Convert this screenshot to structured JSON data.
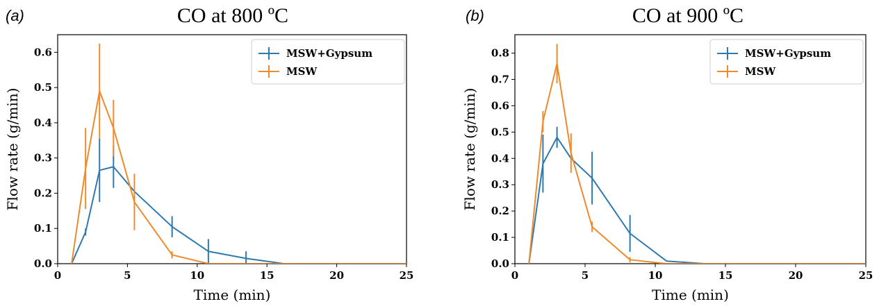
{
  "chart_data": [
    {
      "type": "line",
      "panel_label": "(a)",
      "title": "CO at 800 ºC",
      "xlabel": "Time (min)",
      "ylabel": "Flow rate (g/min)",
      "xlim": [
        0,
        25
      ],
      "ylim": [
        0,
        0.65
      ],
      "xticks": [
        0,
        5,
        10,
        15,
        20,
        25
      ],
      "yticks": [
        0.0,
        0.1,
        0.2,
        0.3,
        0.4,
        0.5,
        0.6
      ],
      "ytick_labels": [
        "0.0",
        "0.1",
        "0.2",
        "0.3",
        "0.4",
        "0.5",
        "0.6"
      ],
      "grid": false,
      "legend_position": "top-right",
      "series": [
        {
          "name": "MSW+Gypsum",
          "color": "#2e7ab0",
          "x": [
            1,
            2,
            3,
            4,
            5.5,
            8.2,
            10.8,
            13.5,
            16.2,
            25
          ],
          "y": [
            0,
            0.09,
            0.265,
            0.275,
            0.205,
            0.105,
            0.035,
            0.015,
            0,
            0
          ],
          "err": [
            0,
            0.01,
            0.09,
            0.06,
            0,
            0.03,
            0.035,
            0.02,
            0,
            0
          ]
        },
        {
          "name": "MSW",
          "color": "#ef8a2a",
          "x": [
            1,
            2,
            3,
            4,
            5.5,
            8.2,
            10.8,
            25
          ],
          "y": [
            0,
            0.27,
            0.49,
            0.385,
            0.175,
            0.025,
            0,
            0
          ],
          "err": [
            0,
            0.115,
            0.135,
            0.08,
            0.08,
            0.01,
            0,
            0
          ]
        }
      ]
    },
    {
      "type": "line",
      "panel_label": "(b)",
      "title": "CO at 900 ºC",
      "xlabel": "Time (min)",
      "ylabel": "Flow rate (g/min)",
      "xlim": [
        0,
        25
      ],
      "ylim": [
        0,
        0.87
      ],
      "xticks": [
        0,
        5,
        10,
        15,
        20,
        25
      ],
      "yticks": [
        0.0,
        0.1,
        0.2,
        0.3,
        0.4,
        0.5,
        0.6,
        0.7,
        0.8
      ],
      "ytick_labels": [
        "0.0",
        "0.1",
        "0.2",
        "0.3",
        "0.4",
        "0.5",
        "0.6",
        "0.7",
        "0.8"
      ],
      "grid": false,
      "legend_position": "top-right",
      "series": [
        {
          "name": "MSW+Gypsum",
          "color": "#2e7ab0",
          "x": [
            1,
            2,
            3,
            4,
            5.5,
            8.2,
            10.8,
            13.5,
            25
          ],
          "y": [
            0,
            0.38,
            0.48,
            0.4,
            0.325,
            0.115,
            0.01,
            0,
            0
          ],
          "err": [
            0,
            0.11,
            0.04,
            0,
            0.1,
            0.07,
            0,
            0,
            0
          ]
        },
        {
          "name": "MSW",
          "color": "#ef8a2a",
          "x": [
            1,
            2,
            3,
            4,
            5.5,
            8.2,
            10.8,
            25
          ],
          "y": [
            0,
            0.54,
            0.76,
            0.42,
            0.14,
            0.015,
            0,
            0
          ],
          "err": [
            0,
            0.04,
            0.075,
            0.075,
            0.02,
            0.01,
            0,
            0
          ]
        }
      ]
    }
  ]
}
